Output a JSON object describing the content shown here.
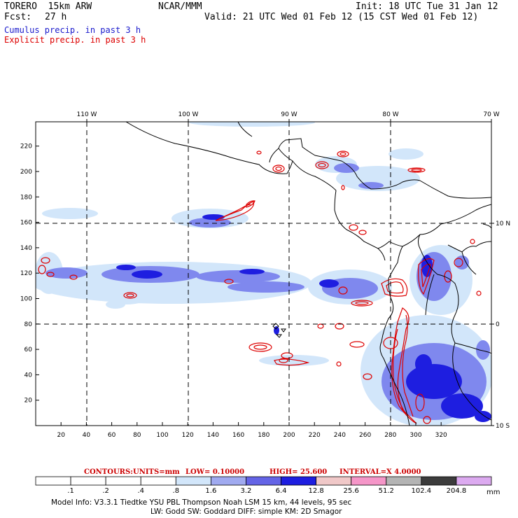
{
  "header": {
    "model_title": "TORERO  15km ARW",
    "org": "NCAR/MMM",
    "init": "Init: 18 UTC Tue 31 Jan 12",
    "fcst_label": "Fcst:",
    "fcst_value": "27 h",
    "valid": "Valid: 21 UTC Wed 01 Feb 12 (15 CST Wed 01 Feb 12)",
    "line_cumulus": "Cumulus precip. in past 3 h",
    "line_explicit": "Explicit precip. in past 3 h"
  },
  "colors": {
    "cumulus": "#1a1acc",
    "explicit": "#dd0000",
    "contour_label": "#cc0000",
    "coast": "#000000",
    "grid": "#000000"
  },
  "map": {
    "lon_labels": [
      "110 W",
      "100 W",
      "90 W",
      "80 W",
      "70 W"
    ],
    "lat_labels_right": [
      "10 N",
      "0",
      "10 S"
    ],
    "y_ticks": [
      "20",
      "40",
      "60",
      "80",
      "100",
      "120",
      "140",
      "160",
      "180",
      "200",
      "220"
    ],
    "x_ticks": [
      "20",
      "40",
      "60",
      "80",
      "100",
      "120",
      "140",
      "160",
      "180",
      "200",
      "220",
      "240",
      "260",
      "280",
      "300",
      "320"
    ]
  },
  "contours": {
    "label": "CONTOURS:",
    "units": "UNITS=mm",
    "low": "LOW= 0.10000",
    "high": "HIGH=  25.600",
    "interval": "INTERVAL=X  4.0000"
  },
  "colorbar": {
    "units": "mm",
    "labels": [
      ".1",
      ".2",
      ".4",
      ".8",
      "1.6",
      "3.2",
      "6.4",
      "12.8",
      "25.6",
      "51.2",
      "102.4",
      "204.8"
    ],
    "colors": [
      "#ffffff",
      "#ffffff",
      "#ffffff",
      "#ffffff",
      "#d2e6fa",
      "#a0aaf0",
      "#6464e6",
      "#1e1ee0",
      "#f0c8c8",
      "#f596c8",
      "#b4b4b4",
      "#3c3c3c",
      "#dcaaf0"
    ]
  },
  "footer": {
    "line1": "Model Info: V3.3.1    Tiedtke YSU PBL   Thompson     Noah LSM  15 km,    44 levels,    95 sec",
    "line2": "LW: Godd SW: Goddard DIFF: simple KM: 2D Smagor"
  }
}
